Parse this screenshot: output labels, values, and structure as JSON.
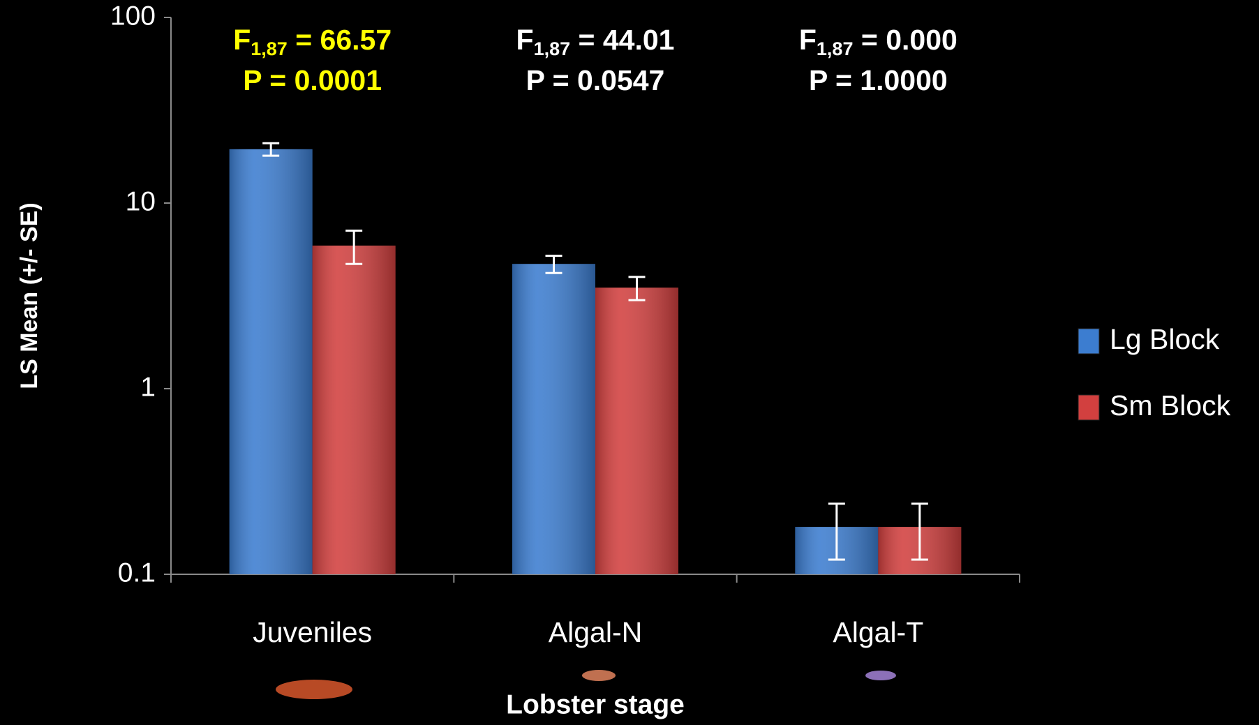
{
  "chart_data": {
    "type": "bar",
    "y_label": "LS Mean (+/- SE)",
    "x_label": "Lobster stage",
    "categories": [
      "Juveniles",
      "Algal-N",
      "Algal-T"
    ],
    "series": [
      {
        "name": "Lg Block",
        "color": "#3c7dd0",
        "values": [
          19.5,
          4.7,
          0.18
        ],
        "errors": [
          1.5,
          0.5,
          0.06
        ]
      },
      {
        "name": "Sm Block",
        "color": "#d2403f",
        "values": [
          5.9,
          3.5,
          0.18
        ],
        "errors": [
          1.2,
          0.5,
          0.06
        ]
      }
    ],
    "annotations": [
      {
        "f": "F",
        "sub": "1,87",
        "stat": " = 66.57",
        "p": "P = 0.0001",
        "color": "#ffff00"
      },
      {
        "f": "F",
        "sub": "1,87",
        "stat": " = 44.01",
        "p": "P = 0.0547",
        "color": "#ffffff"
      },
      {
        "f": "F",
        "sub": "1,87",
        "stat": " = 0.000",
        "p": "P = 1.0000",
        "color": "#ffffff"
      }
    ],
    "log_scale": true,
    "ylim": [
      0.1,
      100
    ],
    "yticks": [
      0.1,
      1,
      10,
      100
    ],
    "legend": "right"
  }
}
